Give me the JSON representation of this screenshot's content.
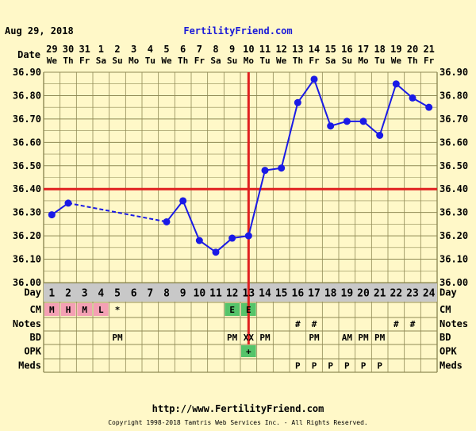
{
  "header": {
    "date": "Aug 29, 2018",
    "site": "FertilityFriend.com"
  },
  "footer": {
    "url": "http://www.FertilityFriend.com",
    "copyright": "Copyright 1998-2018 Tamtris Web Services Inc. - All Rights Reserved."
  },
  "colors": {
    "background": "#fff8c8",
    "grid": "#8f8a55",
    "temp_line": "#1a1ae6",
    "coverline": "#e02020",
    "ovulation_line": "#e02020",
    "day_row": "#c8c8c8",
    "cm_pink": "#f4a0b4",
    "green": "#55c46a",
    "site_link": "#1a1ad8"
  },
  "chart_data": {
    "type": "line",
    "row_labels": {
      "date": "Date",
      "day": "Day",
      "cm": "CM",
      "notes": "Notes",
      "bd": "BD",
      "opk": "OPK",
      "meds": "Meds"
    },
    "dates": [
      "29",
      "30",
      "31",
      "1",
      "2",
      "3",
      "4",
      "5",
      "6",
      "7",
      "8",
      "9",
      "10",
      "11",
      "12",
      "13",
      "14",
      "15",
      "16",
      "17",
      "18",
      "19",
      "20",
      "21"
    ],
    "weekdays": [
      "We",
      "Th",
      "Fr",
      "Sa",
      "Su",
      "Mo",
      "Tu",
      "We",
      "Th",
      "Fr",
      "Sa",
      "Su",
      "Mo",
      "Tu",
      "We",
      "Th",
      "Fr",
      "Sa",
      "Su",
      "Mo",
      "Tu",
      "We",
      "Th",
      "Fr"
    ],
    "days": [
      "1",
      "2",
      "3",
      "4",
      "5",
      "6",
      "7",
      "8",
      "9",
      "10",
      "11",
      "12",
      "13",
      "14",
      "15",
      "16",
      "17",
      "18",
      "19",
      "20",
      "21",
      "22",
      "23",
      "24"
    ],
    "y_ticks": [
      "36.90",
      "36.80",
      "36.70",
      "36.60",
      "36.50",
      "36.40",
      "36.30",
      "36.20",
      "36.10",
      "36.00"
    ],
    "ylim": [
      36.0,
      36.9
    ],
    "temperatures": [
      {
        "day": 1,
        "temp": 36.29
      },
      {
        "day": 2,
        "temp": 36.34
      },
      {
        "day": 8,
        "temp": 36.26
      },
      {
        "day": 9,
        "temp": 36.35
      },
      {
        "day": 10,
        "temp": 36.18
      },
      {
        "day": 11,
        "temp": 36.13
      },
      {
        "day": 12,
        "temp": 36.19
      },
      {
        "day": 13,
        "temp": 36.2
      },
      {
        "day": 14,
        "temp": 36.48
      },
      {
        "day": 15,
        "temp": 36.49
      },
      {
        "day": 16,
        "temp": 36.77
      },
      {
        "day": 17,
        "temp": 36.87
      },
      {
        "day": 18,
        "temp": 36.67
      },
      {
        "day": 19,
        "temp": 36.69
      },
      {
        "day": 20,
        "temp": 36.69
      },
      {
        "day": 21,
        "temp": 36.63
      },
      {
        "day": 22,
        "temp": 36.85
      },
      {
        "day": 23,
        "temp": 36.79
      },
      {
        "day": 24,
        "temp": 36.75
      }
    ],
    "dashed_segments": [
      [
        2,
        8
      ]
    ],
    "coverline": 36.4,
    "ovulation_day": 13,
    "cm": [
      {
        "day": 1,
        "text": "M",
        "color": "#f4a0b4"
      },
      {
        "day": 2,
        "text": "H",
        "color": "#f4a0b4"
      },
      {
        "day": 3,
        "text": "M",
        "color": "#f4a0b4"
      },
      {
        "day": 4,
        "text": "L",
        "color": "#f4a0b4"
      },
      {
        "day": 5,
        "text": "*"
      },
      {
        "day": 12,
        "text": "E",
        "color": "#55c46a"
      },
      {
        "day": 13,
        "text": "E",
        "color": "#55c46a"
      }
    ],
    "notes": [
      {
        "day": 16,
        "text": "#"
      },
      {
        "day": 17,
        "text": "#"
      },
      {
        "day": 22,
        "text": "#"
      },
      {
        "day": 23,
        "text": "#"
      }
    ],
    "bd": [
      {
        "day": 5,
        "text": "PM"
      },
      {
        "day": 12,
        "text": "PM"
      },
      {
        "day": 13,
        "text": "XX"
      },
      {
        "day": 14,
        "text": "PM"
      },
      {
        "day": 17,
        "text": "PM"
      },
      {
        "day": 19,
        "text": "AM"
      },
      {
        "day": 20,
        "text": "PM"
      },
      {
        "day": 21,
        "text": "PM"
      }
    ],
    "opk": [
      {
        "day": 13,
        "text": "+",
        "color": "#55c46a"
      }
    ],
    "meds": [
      {
        "day": 16,
        "text": "P"
      },
      {
        "day": 17,
        "text": "P"
      },
      {
        "day": 18,
        "text": "P"
      },
      {
        "day": 19,
        "text": "P"
      },
      {
        "day": 20,
        "text": "P"
      },
      {
        "day": 21,
        "text": "P"
      }
    ]
  }
}
